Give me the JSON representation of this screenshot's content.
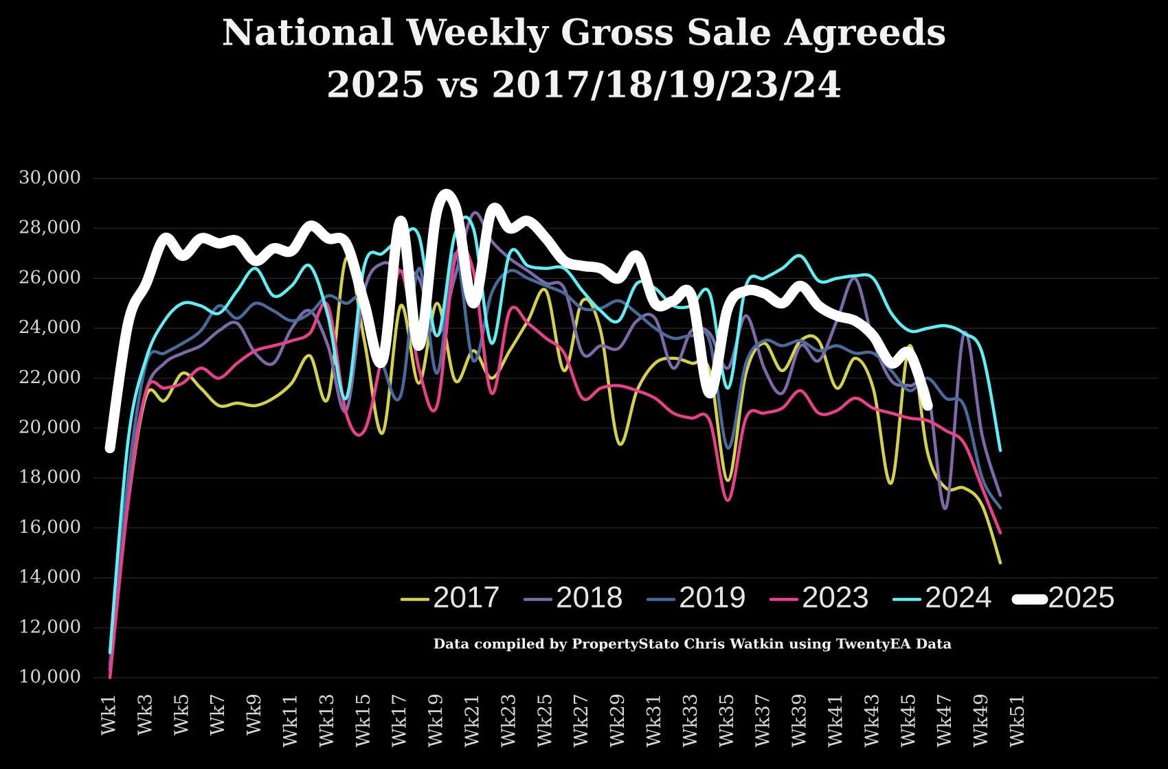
{
  "chart_data": {
    "type": "line",
    "title": "National Weekly Gross Sale Agreeds",
    "subtitle": "2025 vs 2017/18/19/23/24",
    "note": "Data compiled by PropertyStato Chris Watkin using TwentyEA Data",
    "categories": [
      "Wk1",
      null,
      "Wk3",
      null,
      "Wk5",
      null,
      "Wk7",
      null,
      "Wk9",
      null,
      "Wk11",
      null,
      "Wk13",
      null,
      "Wk15",
      null,
      "Wk17",
      null,
      "Wk19",
      null,
      "Wk21",
      null,
      "Wk23",
      null,
      "Wk25",
      null,
      "Wk27",
      null,
      "Wk29",
      null,
      "Wk31",
      null,
      "Wk33",
      null,
      "Wk35",
      null,
      "Wk37",
      null,
      "Wk39",
      null,
      "Wk41",
      null,
      "Wk43",
      null,
      "Wk45",
      null,
      "Wk47",
      null,
      "Wk49",
      null,
      "Wk51"
    ],
    "ylim": [
      10000,
      30000
    ],
    "yticks": [
      {
        "value": 10000,
        "label": "10,000"
      },
      {
        "value": 12000,
        "label": "12,000"
      },
      {
        "value": 14000,
        "label": "14,000"
      },
      {
        "value": 16000,
        "label": "16,000"
      },
      {
        "value": 18000,
        "label": "18,000"
      },
      {
        "value": 20000,
        "label": "20,000"
      },
      {
        "value": 22000,
        "label": "22,000"
      },
      {
        "value": 24000,
        "label": "24,000"
      },
      {
        "value": 26000,
        "label": "26,000"
      },
      {
        "value": 28000,
        "label": "28,000"
      },
      {
        "value": 30000,
        "label": "30,000"
      }
    ],
    "grid": true,
    "legend": "bottom-right",
    "series": [
      {
        "name": "2017",
        "color": "#d4d24a",
        "values": [
          10500,
          17000,
          21300,
          21100,
          22200,
          21600,
          20900,
          21000,
          20900,
          21200,
          21800,
          22900,
          21200,
          26800,
          23500,
          19800,
          24900,
          21800,
          25000,
          21900,
          23100,
          22000,
          23100,
          24300,
          25500,
          22300,
          25100,
          23900,
          19400,
          21500,
          22600,
          22800,
          22600,
          22300,
          17900,
          22200,
          23400,
          22300,
          23500,
          23500,
          21600,
          22800,
          21600,
          17800,
          23300,
          19000,
          17600,
          17600,
          16900,
          14600,
          null
        ]
      },
      {
        "name": "2018",
        "color": "#7e6aa8",
        "values": [
          10300,
          17500,
          21500,
          22600,
          23000,
          23300,
          23900,
          24200,
          23000,
          22600,
          24000,
          24700,
          23300,
          20700,
          25500,
          26600,
          26300,
          26000,
          23700,
          26100,
          28600,
          27500,
          26800,
          26300,
          25800,
          25600,
          23000,
          23300,
          23200,
          24300,
          24400,
          22400,
          23900,
          23800,
          22400,
          24500,
          22400,
          21400,
          23300,
          22700,
          24300,
          26000,
          23500,
          21900,
          21700,
          21500,
          16800,
          23800,
          19700,
          17300,
          null
        ]
      },
      {
        "name": "2019",
        "color": "#4a6a9a",
        "values": [
          10500,
          18000,
          22600,
          23000,
          23400,
          23900,
          24900,
          24400,
          25000,
          24700,
          24300,
          24600,
          25300,
          25000,
          25200,
          22600,
          21300,
          26400,
          22200,
          27000,
          22700,
          25400,
          26300,
          26000,
          25700,
          25400,
          24800,
          24800,
          25100,
          24600,
          24000,
          23600,
          23700,
          23500,
          19200,
          22600,
          23500,
          23300,
          23500,
          23100,
          23300,
          23000,
          23000,
          22300,
          21500,
          22000,
          21200,
          20900,
          18000,
          16800,
          null
        ]
      },
      {
        "name": "2023",
        "color": "#e8418a",
        "values": [
          10000,
          17000,
          21500,
          21600,
          21800,
          22400,
          22000,
          22600,
          23100,
          23300,
          23500,
          23800,
          24900,
          20600,
          19900,
          23000,
          26300,
          22400,
          20900,
          26800,
          26300,
          21400,
          24700,
          24200,
          23600,
          23000,
          21200,
          21600,
          21700,
          21500,
          21200,
          20600,
          20400,
          20300,
          17100,
          20400,
          20600,
          20800,
          21500,
          20600,
          20700,
          21200,
          20800,
          20600,
          20400,
          20300,
          19900,
          19400,
          17600,
          15800,
          null
        ]
      },
      {
        "name": "2024",
        "color": "#5ff0f5",
        "values": [
          11000,
          19500,
          22800,
          24300,
          25000,
          24900,
          24600,
          25500,
          26400,
          25300,
          25700,
          26500,
          24500,
          21200,
          26500,
          27000,
          27600,
          27700,
          23700,
          27800,
          28000,
          23400,
          27000,
          26500,
          26400,
          26400,
          25500,
          24700,
          24300,
          25800,
          25600,
          24900,
          24900,
          25400,
          21600,
          25700,
          26000,
          26400,
          26900,
          25900,
          26000,
          26100,
          26000,
          24600,
          23900,
          24000,
          24100,
          23800,
          23000,
          19100,
          null
        ]
      },
      {
        "name": "2025",
        "color": "#ffffff",
        "values": [
          19200,
          24200,
          25800,
          27600,
          26900,
          27600,
          27400,
          27500,
          26700,
          27200,
          27100,
          28100,
          27600,
          27400,
          25000,
          22700,
          28300,
          23300,
          28700,
          28900,
          25000,
          28700,
          28000,
          28300,
          27600,
          26700,
          26500,
          26400,
          26000,
          26900,
          25000,
          25100,
          25300,
          21400,
          24800,
          25500,
          25400,
          25000,
          25700,
          24900,
          24500,
          24300,
          23700,
          22600,
          23000,
          20900,
          null,
          null,
          null,
          null,
          null
        ]
      }
    ]
  }
}
